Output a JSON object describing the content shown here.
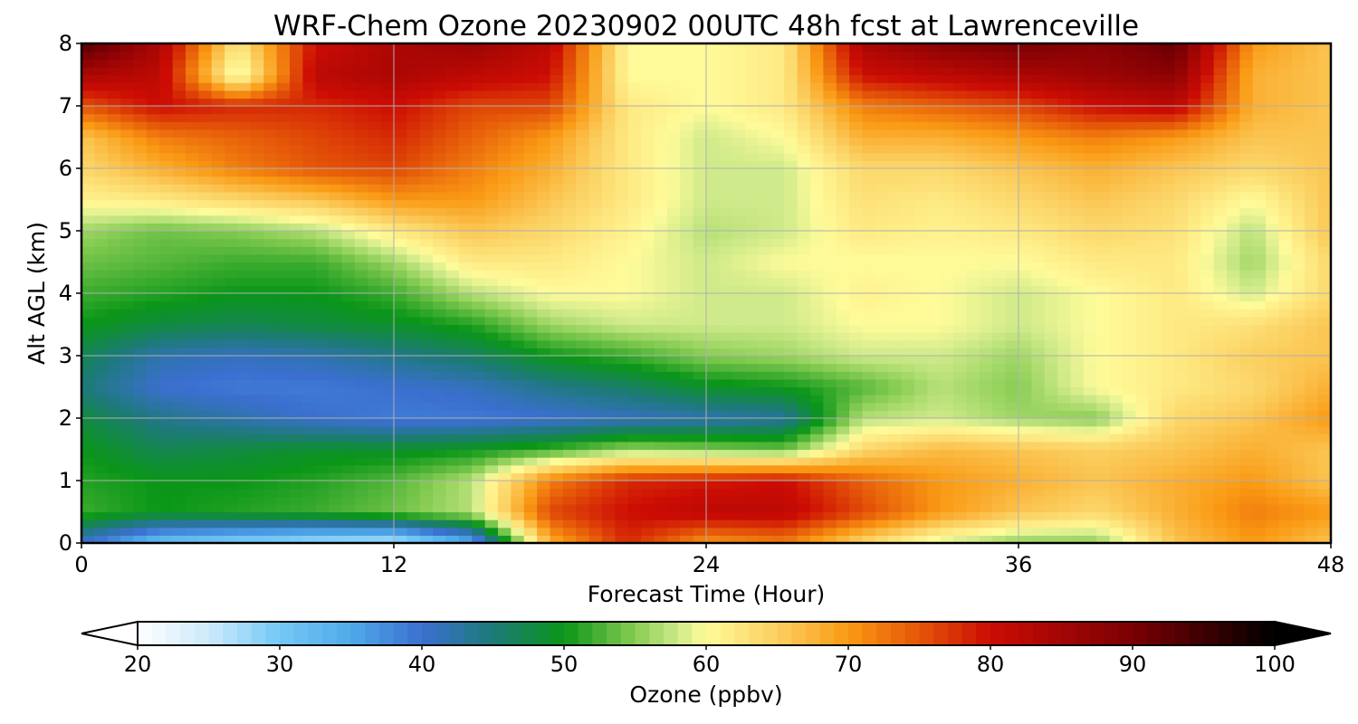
{
  "chart_data": {
    "type": "heatmap",
    "title": "WRF-Chem Ozone  20230902 00UTC 48h fcst at Lawrenceville",
    "xlabel": "Forecast Time (Hour)",
    "ylabel": "Alt AGL (km)",
    "xlim": [
      0,
      48
    ],
    "ylim": [
      0,
      8
    ],
    "x_ticks": [
      "0",
      "12",
      "24",
      "36",
      "48"
    ],
    "y_ticks": [
      "0",
      "1",
      "2",
      "3",
      "4",
      "5",
      "6",
      "7",
      "8"
    ],
    "grid": true,
    "colorbar": {
      "label": "Ozone  (ppbv)",
      "range": [
        20,
        100
      ],
      "extend": "both",
      "ticks": [
        "20",
        "30",
        "40",
        "50",
        "60",
        "70",
        "80",
        "90",
        "100"
      ],
      "colors": [
        {
          "v": 20,
          "c": "#ffffff"
        },
        {
          "v": 25,
          "c": "#cdeafb"
        },
        {
          "v": 30,
          "c": "#74c8f6"
        },
        {
          "v": 35,
          "c": "#4faae8"
        },
        {
          "v": 40,
          "c": "#3b6fd0"
        },
        {
          "v": 45,
          "c": "#1d7a78"
        },
        {
          "v": 50,
          "c": "#0a9618"
        },
        {
          "v": 55,
          "c": "#86cc52"
        },
        {
          "v": 58,
          "c": "#cfea8a"
        },
        {
          "v": 60,
          "c": "#fffb9a"
        },
        {
          "v": 65,
          "c": "#fbcf60"
        },
        {
          "v": 70,
          "c": "#fa9a14"
        },
        {
          "v": 75,
          "c": "#e45508"
        },
        {
          "v": 80,
          "c": "#cc0c04"
        },
        {
          "v": 90,
          "c": "#7a0004"
        },
        {
          "v": 100,
          "c": "#000000"
        }
      ]
    },
    "x_hours": [
      0,
      3,
      6,
      9,
      12,
      15,
      18,
      21,
      24,
      27,
      30,
      33,
      36,
      39,
      42,
      45,
      48
    ],
    "y_km": [
      0,
      0.5,
      1,
      1.5,
      2,
      2.5,
      3,
      3.5,
      4,
      4.5,
      5,
      5.5,
      6,
      6.5,
      7,
      7.5,
      8
    ],
    "ozone_ppbv": [
      [
        40,
        31,
        28,
        26,
        25,
        34,
        68,
        78,
        70,
        72,
        64,
        58,
        55,
        55,
        66,
        70,
        66
      ],
      [
        52,
        50,
        51,
        52,
        54,
        57,
        76,
        80,
        82,
        82,
        76,
        70,
        66,
        64,
        68,
        72,
        70
      ],
      [
        51,
        50,
        50,
        51,
        53,
        57,
        72,
        78,
        79,
        80,
        74,
        70,
        68,
        66,
        68,
        70,
        66
      ],
      [
        50,
        47,
        48,
        49,
        49,
        50,
        52,
        56,
        55,
        54,
        64,
        67,
        66,
        65,
        66,
        68,
        66
      ],
      [
        48,
        44,
        42,
        40,
        39,
        39,
        40,
        41,
        42,
        43,
        57,
        58,
        56,
        55,
        64,
        66,
        70
      ],
      [
        45,
        40,
        39,
        39,
        40,
        41,
        44,
        46,
        49,
        50,
        53,
        57,
        55,
        60,
        62,
        64,
        68
      ],
      [
        47,
        42,
        41,
        42,
        44,
        46,
        50,
        52,
        55,
        56,
        58,
        58,
        56,
        60,
        62,
        65,
        66
      ],
      [
        50,
        48,
        47,
        48,
        49,
        51,
        56,
        58,
        58,
        58,
        60,
        60,
        58,
        60,
        62,
        63,
        66
      ],
      [
        52,
        51,
        50,
        50,
        52,
        57,
        60,
        60,
        58,
        58,
        61,
        60,
        58,
        60,
        62,
        58,
        64
      ],
      [
        54,
        53,
        52,
        52,
        56,
        62,
        62,
        60,
        58,
        60,
        60,
        60,
        60,
        62,
        62,
        56,
        64
      ],
      [
        56,
        54,
        55,
        57,
        62,
        66,
        64,
        61,
        57,
        58,
        62,
        61,
        62,
        64,
        63,
        57,
        66
      ],
      [
        61,
        62,
        64,
        66,
        70,
        70,
        66,
        62,
        58,
        58,
        63,
        62,
        64,
        66,
        64,
        60,
        66
      ],
      [
        64,
        68,
        72,
        75,
        76,
        72,
        68,
        62,
        58,
        58,
        64,
        64,
        66,
        68,
        66,
        64,
        66
      ],
      [
        66,
        72,
        74,
        76,
        78,
        74,
        70,
        62,
        58,
        60,
        68,
        68,
        70,
        72,
        70,
        66,
        66
      ],
      [
        75,
        80,
        78,
        78,
        80,
        76,
        76,
        62,
        60,
        62,
        72,
        74,
        76,
        80,
        82,
        68,
        66
      ],
      [
        84,
        82,
        58,
        82,
        84,
        82,
        80,
        60,
        60,
        62,
        80,
        82,
        84,
        86,
        88,
        68,
        66
      ],
      [
        94,
        84,
        62,
        80,
        84,
        86,
        82,
        60,
        60,
        62,
        84,
        88,
        90,
        88,
        92,
        70,
        66
      ]
    ]
  }
}
